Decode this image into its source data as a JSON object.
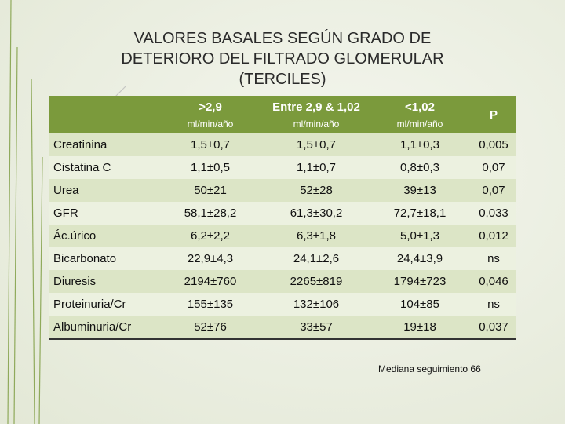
{
  "title_lines": [
    "VALORES BASALES SEGÚN GRADO DE",
    "DETERIORO DEL FILTRADO GLOMERULAR",
    "(TERCILES)"
  ],
  "table": {
    "header": [
      {
        "label": ">2,9",
        "unit": "ml/min/año"
      },
      {
        "label": "Entre 2,9 & 1,02",
        "unit": "ml/min/año"
      },
      {
        "label": "<1,02",
        "unit": "ml/min/año"
      },
      {
        "label": "P"
      }
    ],
    "rows": [
      [
        "Creatinina",
        "1,5±0,7",
        "1,5±0,7",
        "1,1±0,3",
        "0,005"
      ],
      [
        "Cistatina C",
        "1,1±0,5",
        "1,1±0,7",
        "0,8±0,3",
        "0,07"
      ],
      [
        "Urea",
        "50±21",
        "52±28",
        "39±13",
        "0,07"
      ],
      [
        "GFR",
        "58,1±28,2",
        "61,3±30,2",
        "72,7±18,1",
        "0,033"
      ],
      [
        "Ác.úrico",
        "6,2±2,2",
        "6,3±1,8",
        "5,0±1,3",
        "0,012"
      ],
      [
        "Bicarbonato",
        "22,9±4,3",
        "24,1±2,6",
        "24,4±3,9",
        "ns"
      ],
      [
        "Diuresis",
        "2194±760",
        "2265±819",
        "1794±723",
        "0,046"
      ],
      [
        "Proteinuria/Cr",
        "155±135",
        "132±106",
        "104±85",
        "ns"
      ],
      [
        "Albuminuria/Cr",
        "52±76",
        "33±57",
        "19±18",
        "0,037"
      ]
    ]
  },
  "footnote": "Mediana seguimiento 66"
}
